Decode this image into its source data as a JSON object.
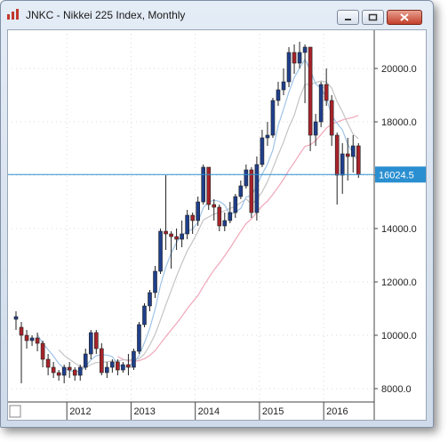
{
  "window": {
    "title": "JNKC - Nikkei 225 Index, Monthly",
    "controls": [
      "minimize",
      "restore",
      "close"
    ]
  },
  "price_label": "16024.5",
  "chart_data": {
    "type": "candlestick",
    "title": "JNKC - Nikkei 225 Index, Monthly",
    "y_ticks": [
      "8000.0",
      "10000.0",
      "12000.0",
      "14000.0",
      "16000.0",
      "18000.0",
      "20000.0"
    ],
    "x_ticks": [
      "2012",
      "2013",
      "2014",
      "2015",
      "2016"
    ],
    "ylim": [
      7500,
      21300
    ],
    "grid": true,
    "current_price": 16024.5,
    "colors": {
      "up": "#1f3f8c",
      "down": "#a8232a",
      "price_line": "#2a8fd1",
      "ma_fast": "#9ec3e6",
      "ma_mid": "#c4c4c4",
      "ma_slow": "#f0a6b8"
    },
    "candles": [
      [
        10600,
        10700,
        10900,
        10200
      ],
      [
        10300,
        10000,
        10500,
        8200
      ],
      [
        10000,
        9800,
        10200,
        9500
      ],
      [
        9800,
        9900,
        10000,
        9600
      ],
      [
        9900,
        9700,
        10100,
        9400
      ],
      [
        9700,
        9100,
        9800,
        8800
      ],
      [
        9100,
        8800,
        9300,
        8500
      ],
      [
        8800,
        8600,
        9000,
        8400
      ],
      [
        8600,
        8500,
        8700,
        8300
      ],
      [
        8500,
        8800,
        8900,
        8200
      ],
      [
        8800,
        8700,
        9000,
        8400
      ],
      [
        8700,
        8500,
        8800,
        8300
      ],
      [
        8500,
        8800,
        8900,
        8300
      ],
      [
        8800,
        9300,
        9500,
        8700
      ],
      [
        9300,
        10100,
        10200,
        9100
      ],
      [
        10100,
        9500,
        10200,
        9300
      ],
      [
        9500,
        8600,
        9700,
        8500
      ],
      [
        8600,
        8800,
        9000,
        8400
      ],
      [
        8800,
        9000,
        9100,
        8600
      ],
      [
        9000,
        8700,
        9100,
        8500
      ],
      [
        8700,
        8900,
        9000,
        8600
      ],
      [
        8900,
        8800,
        9300,
        8500
      ],
      [
        8800,
        9400,
        9500,
        8700
      ],
      [
        9400,
        10400,
        10500,
        9300
      ],
      [
        10400,
        11100,
        11200,
        10300
      ],
      [
        11100,
        11600,
        11700,
        10900
      ],
      [
        11600,
        12400,
        12600,
        11400
      ],
      [
        12400,
        13900,
        14000,
        12300
      ],
      [
        13900,
        13800,
        16000,
        13200
      ],
      [
        13800,
        13700,
        13900,
        12500
      ],
      [
        13700,
        13600,
        14000,
        13200
      ],
      [
        13600,
        13800,
        14300,
        13300
      ],
      [
        13800,
        14500,
        14700,
        13600
      ],
      [
        14500,
        14300,
        14600,
        13800
      ],
      [
        14300,
        15000,
        15200,
        14100
      ],
      [
        15000,
        16300,
        16400,
        14900
      ],
      [
        16300,
        14900,
        16300,
        14700
      ],
      [
        14900,
        14800,
        15100,
        14300
      ],
      [
        14800,
        14100,
        14900,
        13900
      ],
      [
        14100,
        14300,
        14600,
        13900
      ],
      [
        14300,
        14600,
        15000,
        14200
      ],
      [
        14600,
        15200,
        15300,
        14400
      ],
      [
        15200,
        15600,
        15800,
        15100
      ],
      [
        15600,
        16200,
        16400,
        15500
      ],
      [
        16200,
        14600,
        16300,
        14400
      ],
      [
        14600,
        16400,
        16700,
        14300
      ],
      [
        16400,
        17400,
        17700,
        16300
      ],
      [
        17400,
        17500,
        18000,
        17100
      ],
      [
        17500,
        18800,
        18900,
        17400
      ],
      [
        18800,
        19200,
        19500,
        18600
      ],
      [
        19200,
        19500,
        20000,
        19000
      ],
      [
        19500,
        20600,
        20800,
        19300
      ],
      [
        20600,
        20200,
        20900,
        19800
      ],
      [
        20200,
        20600,
        21000,
        20000
      ],
      [
        20600,
        20800,
        20900,
        18700
      ],
      [
        20800,
        17500,
        20800,
        16900
      ],
      [
        17500,
        18000,
        18300,
        17100
      ],
      [
        18000,
        19400,
        19500,
        17800
      ],
      [
        19400,
        18800,
        20000,
        18600
      ],
      [
        18800,
        17500,
        19000,
        17100
      ],
      [
        17500,
        16000,
        17600,
        14900
      ],
      [
        16000,
        16800,
        17200,
        15300
      ],
      [
        16800,
        16700,
        17400,
        15800
      ],
      [
        16700,
        17100,
        17500,
        16100
      ],
      [
        17100,
        16024.5,
        17200,
        15900
      ]
    ]
  }
}
